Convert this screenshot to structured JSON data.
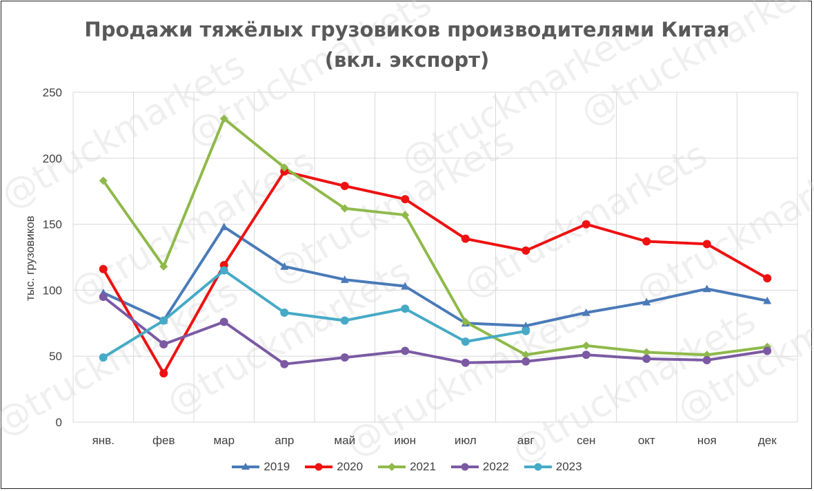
{
  "chart_data": {
    "type": "line",
    "title": "Продажи тяжёлых грузовиков производителями Китая",
    "subtitle": "(вкл. экспорт)",
    "xlabel": "",
    "ylabel": "тыс. грузовиков",
    "ylim": [
      0,
      250
    ],
    "yticks": [
      0,
      50,
      100,
      150,
      200,
      250
    ],
    "grid": true,
    "legend_position": "bottom",
    "categories": [
      "янв.",
      "фев",
      "мар",
      "апр",
      "май",
      "июн",
      "июл",
      "авг",
      "сен",
      "окт",
      "ноя",
      "дек"
    ],
    "series": [
      {
        "name": "2019",
        "color": "#4a7ab8",
        "marker": "triangle",
        "values": [
          98,
          77,
          148,
          118,
          108,
          103,
          75,
          73,
          83,
          91,
          101,
          92
        ]
      },
      {
        "name": "2020",
        "color": "#ee1111",
        "marker": "circle",
        "values": [
          116,
          37,
          119,
          190,
          179,
          169,
          139,
          130,
          150,
          137,
          135,
          109
        ]
      },
      {
        "name": "2021",
        "color": "#8fb94a",
        "marker": "diamond",
        "values": [
          183,
          118,
          230,
          193,
          162,
          157,
          76,
          51,
          58,
          53,
          51,
          57
        ]
      },
      {
        "name": "2022",
        "color": "#7b5aa3",
        "marker": "circle",
        "values": [
          95,
          59,
          76,
          44,
          49,
          54,
          45,
          46,
          51,
          48,
          47,
          54
        ]
      },
      {
        "name": "2023",
        "color": "#46aac6",
        "marker": "circle",
        "values": [
          49,
          77,
          115,
          83,
          77,
          86,
          61,
          69,
          null,
          null,
          null,
          null
        ]
      }
    ]
  },
  "watermark": "@truckmarkets"
}
